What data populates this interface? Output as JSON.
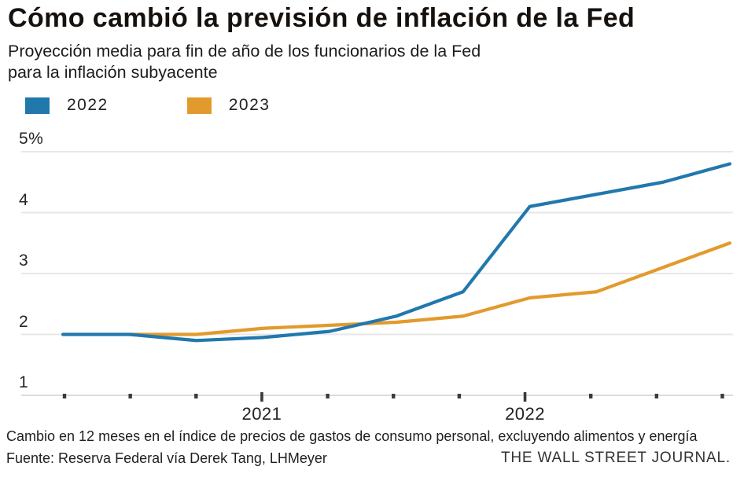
{
  "header": {
    "title": "Cómo cambió la previsión de inflación de la Fed",
    "subtitle_line1": "Proyección media para fin de año de los funcionarios de la Fed",
    "subtitle_line2": "para la inflación subyacente"
  },
  "legend": [
    {
      "label": "2022",
      "color": "#2178ad"
    },
    {
      "label": "2023",
      "color": "#e39a2d"
    }
  ],
  "chart_data": {
    "type": "line",
    "title": "Cómo cambió la previsión de inflación de la Fed",
    "subtitle": "Proyección media para fin de año de los funcionarios de la Fed para la inflación subyacente",
    "xlabel": "",
    "ylabel": "",
    "ylim": [
      1,
      5
    ],
    "y_tick_labels": [
      "5%",
      "4",
      "3",
      "2",
      "1"
    ],
    "y_tick_values": [
      5,
      4,
      3,
      2,
      1
    ],
    "num_x_ticks": 11,
    "x_year_labels": [
      {
        "label": "2021",
        "tick_index": 3
      },
      {
        "label": "2022",
        "tick_index": 7
      }
    ],
    "grid": "horizontal",
    "legend_position": "top-left",
    "series": [
      {
        "name": "2022",
        "color": "#2178ad",
        "x_index": [
          0,
          1,
          2,
          3,
          4,
          5,
          6,
          7,
          8,
          9,
          10
        ],
        "values": [
          2.0,
          2.0,
          1.9,
          1.95,
          2.05,
          2.3,
          2.7,
          4.1,
          4.3,
          4.5,
          4.8
        ]
      },
      {
        "name": "2023",
        "color": "#e39a2d",
        "x_index": [
          1,
          2,
          3,
          4,
          5,
          6,
          7,
          8,
          9,
          10
        ],
        "values": [
          2.0,
          2.0,
          2.1,
          2.15,
          2.2,
          2.3,
          2.6,
          2.7,
          3.1,
          3.5
        ]
      }
    ]
  },
  "footer": {
    "note": "Cambio en 12 meses en el índice de precios de gastos de consumo personal, excluyendo alimentos y energía",
    "source": "Fuente: Reserva Federal vía Derek Tang, LHMeyer",
    "credit": "THE WALL STREET JOURNAL."
  }
}
